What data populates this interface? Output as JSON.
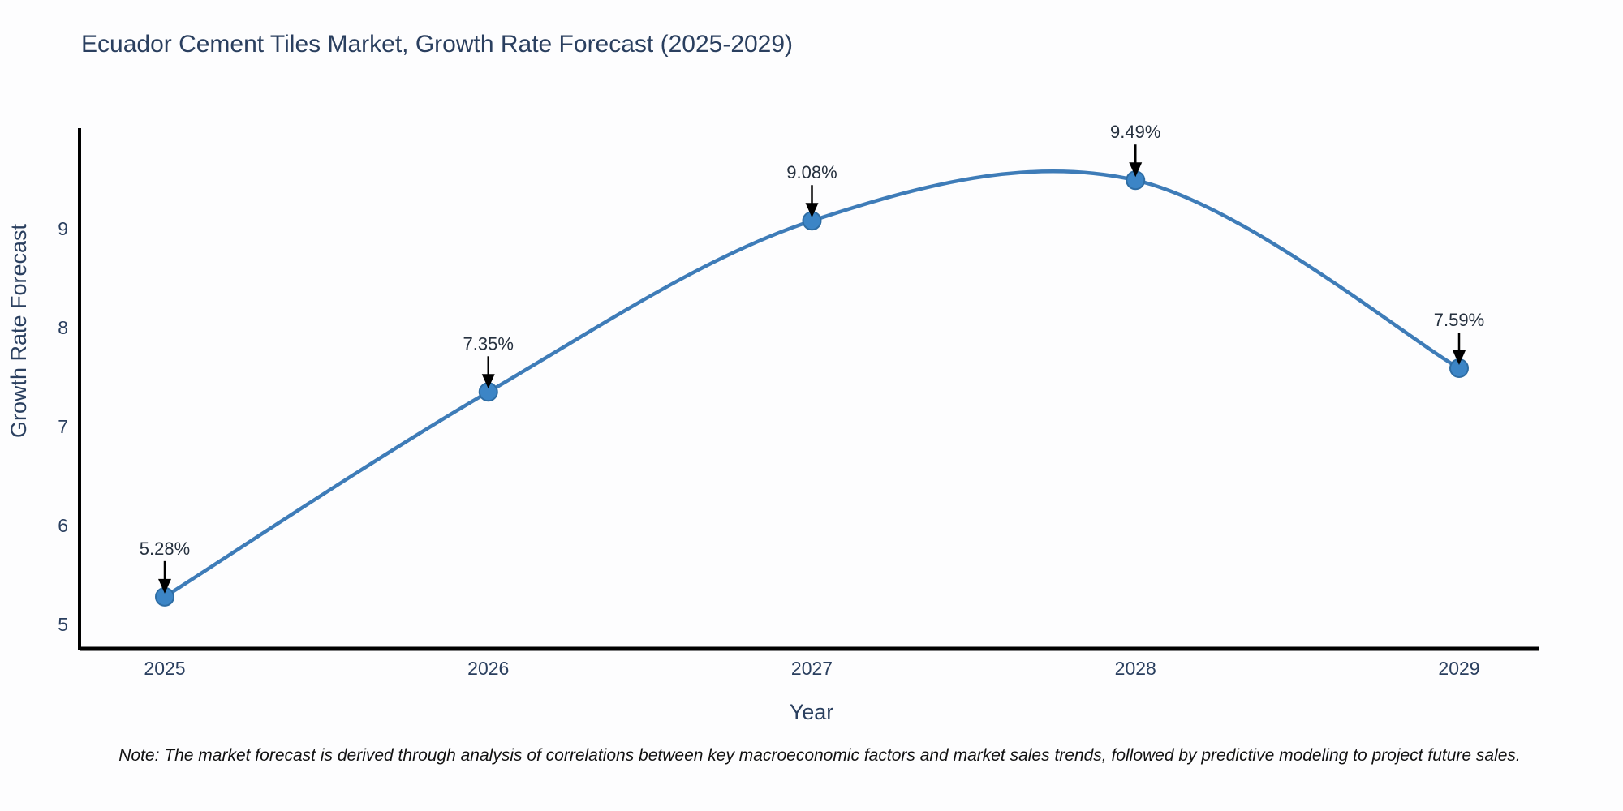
{
  "title": "Ecuador Cement Tiles Market, Growth Rate Forecast (2025-2029)",
  "note": "Note: The market forecast is derived through analysis of correlations between key macroeconomic factors and market sales trends, followed by predictive modeling to project future sales.",
  "chart_data": {
    "type": "line",
    "title": "Ecuador Cement Tiles Market, Growth Rate Forecast (2025-2029)",
    "xlabel": "Year",
    "ylabel": "Growth Rate Forecast",
    "x": [
      "2025",
      "2026",
      "2027",
      "2028",
      "2029"
    ],
    "values": [
      5.28,
      7.35,
      9.08,
      9.49,
      7.59
    ],
    "point_labels": [
      "5.28%",
      "7.35%",
      "9.08%",
      "9.49%",
      "7.59%"
    ],
    "y_ticks": [
      5,
      6,
      7,
      8,
      9
    ],
    "ylim": [
      4.75,
      10.1
    ],
    "line_shape": "spline",
    "grid": false,
    "legend": "none",
    "marker_size": 11,
    "colors": {
      "line": "#3e7cb8",
      "marker_fill": "#3c85c6",
      "marker_edge": "#2e6da4",
      "axis": "#000000",
      "tick_text": "#2a3f5f",
      "annotation_text": "#26313f",
      "arrow": "#000000",
      "note_text": "#111111",
      "background": "#fdfdfe"
    }
  }
}
